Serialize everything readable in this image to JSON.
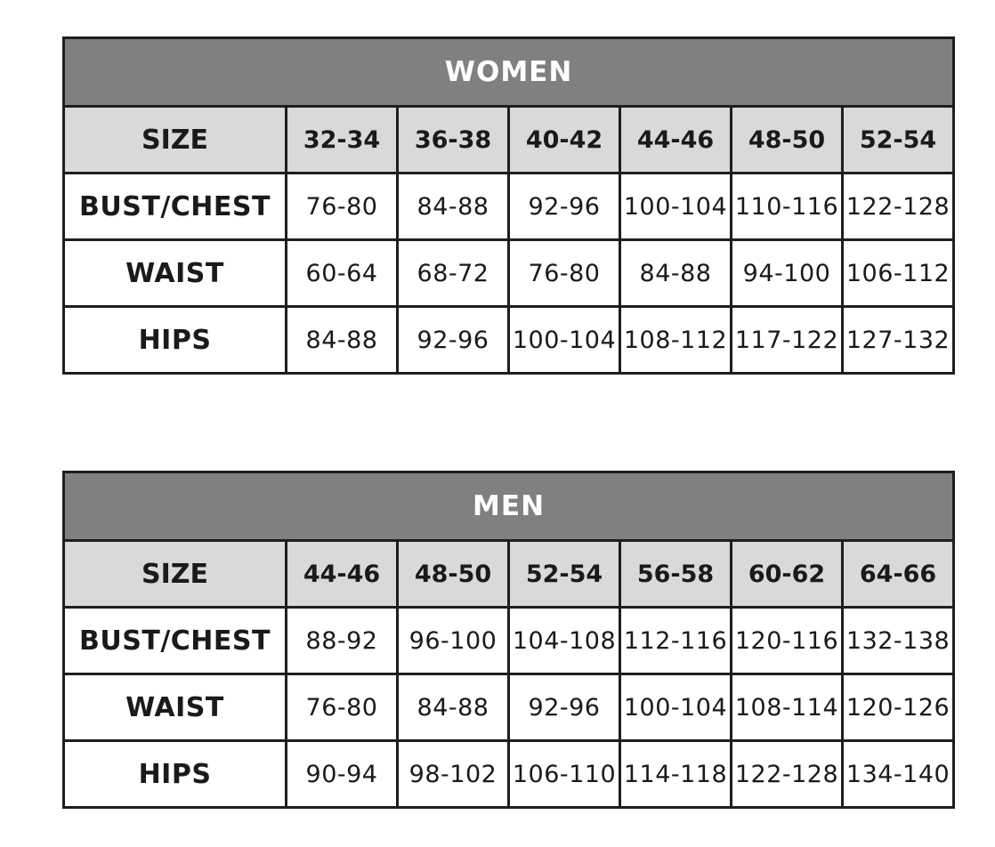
{
  "tables": [
    {
      "id": "women",
      "title": "WOMEN",
      "size_label": "SIZE",
      "sizes": [
        "32-34",
        "36-38",
        "40-42",
        "44-46",
        "48-50",
        "52-54"
      ],
      "rows": [
        {
          "label": "BUST/CHEST",
          "values": [
            "76-80",
            "84-88",
            "92-96",
            "100-104",
            "110-116",
            "122-128"
          ]
        },
        {
          "label": "WAIST",
          "values": [
            "60-64",
            "68-72",
            "76-80",
            "84-88",
            "94-100",
            "106-112"
          ]
        },
        {
          "label": "HIPS",
          "values": [
            "84-88",
            "92-96",
            "100-104",
            "108-112",
            "117-122",
            "127-132"
          ]
        }
      ]
    },
    {
      "id": "men",
      "title": "MEN",
      "size_label": "SIZE",
      "sizes": [
        "44-46",
        "48-50",
        "52-54",
        "56-58",
        "60-62",
        "64-66"
      ],
      "rows": [
        {
          "label": "BUST/CHEST",
          "values": [
            "88-92",
            "96-100",
            "104-108",
            "112-116",
            "120-116",
            "132-138"
          ]
        },
        {
          "label": "WAIST",
          "values": [
            "76-80",
            "84-88",
            "92-96",
            "100-104",
            "108-114",
            "120-126"
          ]
        },
        {
          "label": "HIPS",
          "values": [
            "90-94",
            "98-102",
            "106-110",
            "114-118",
            "122-128",
            "134-140"
          ]
        }
      ]
    }
  ],
  "colors": {
    "title_bg": "#808080",
    "size_row_bg": "#d9d9d9",
    "border": "#1e1e1e"
  }
}
